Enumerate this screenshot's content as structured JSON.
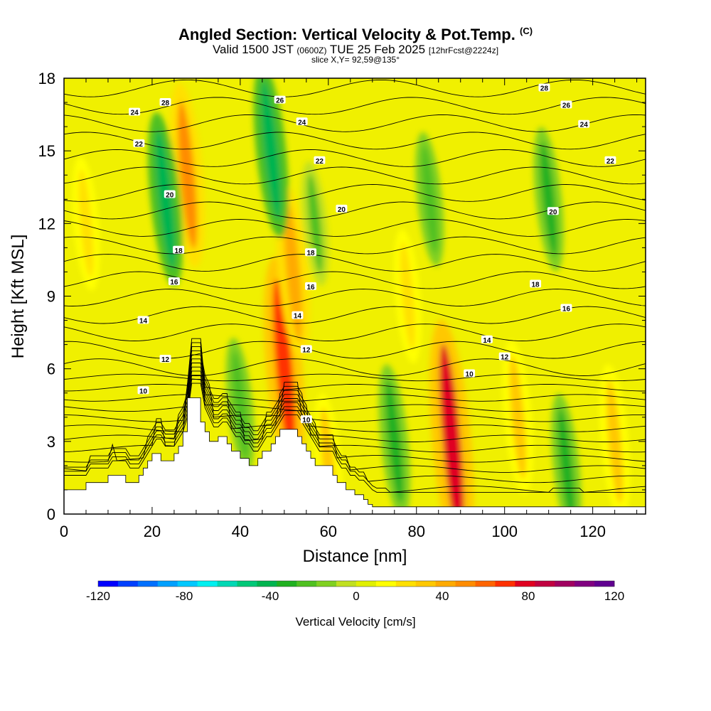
{
  "header": {
    "title_main": "Angled Section: Vertical Velocity & Pot.Temp.",
    "title_unit": "(C)",
    "valid_prefix": "Valid 1500 JST",
    "valid_utc": "(0600Z)",
    "valid_date": "TUE 25 Feb 2025",
    "forecast": "[12hrFcst@2224z]",
    "slice": "slice X,Y= 92,59@135°"
  },
  "chart_data": {
    "type": "heatmap",
    "title": "Angled Section: Vertical Velocity & Pot.Temp. (C)",
    "xlabel": "Distance [nm]",
    "ylabel": "Height [Kft MSL]",
    "xlim": [
      0,
      132
    ],
    "ylim": [
      0,
      18
    ],
    "x_ticks": [
      0,
      20,
      40,
      60,
      80,
      100,
      120
    ],
    "x_tick_labels": [
      "0",
      "20",
      "40",
      "60",
      "80",
      "100",
      "120"
    ],
    "y_ticks": [
      0,
      3,
      6,
      9,
      12,
      15,
      18
    ],
    "y_tick_labels": [
      "0",
      "3",
      "6",
      "9",
      "12",
      "15",
      "18"
    ],
    "colorbar": {
      "label": "Vertical Velocity [cm/s]",
      "min": -120,
      "max": 120,
      "tick_values": [
        -120,
        -80,
        -40,
        0,
        40,
        80,
        120
      ],
      "tick_labels": [
        "-120",
        "-80",
        "-40",
        "0",
        "40",
        "80",
        "120"
      ],
      "colors": [
        "#0000ff",
        "#0040ff",
        "#0070ff",
        "#00a0ff",
        "#00c8ff",
        "#00f0f0",
        "#00d8b4",
        "#00c878",
        "#00b450",
        "#20b020",
        "#50c020",
        "#80d020",
        "#c0e020",
        "#e0f000",
        "#ffff00",
        "#ffe000",
        "#ffc800",
        "#ffaa00",
        "#ff8c00",
        "#ff6400",
        "#ff3000",
        "#e00020",
        "#c00040",
        "#a00060",
        "#800080",
        "#600090"
      ]
    },
    "terrain_profile": {
      "x": [
        0,
        4,
        5,
        9,
        10,
        13,
        14,
        16,
        17,
        18,
        19,
        20,
        21,
        22,
        24,
        25,
        26,
        27,
        28,
        29,
        30,
        31,
        32,
        33,
        35,
        36,
        37,
        38,
        39,
        40,
        42,
        43,
        44,
        45,
        46,
        47,
        48,
        49,
        50,
        52,
        53,
        54,
        55,
        56,
        57,
        59,
        60,
        61,
        62,
        64,
        66,
        68,
        69,
        70,
        72,
        132
      ],
      "y": [
        1.0,
        1.0,
        1.3,
        1.3,
        1.6,
        1.6,
        1.3,
        1.3,
        1.6,
        1.9,
        2.2,
        2.5,
        2.5,
        2.2,
        2.2,
        2.5,
        2.8,
        3.4,
        4.8,
        4.8,
        4.8,
        3.8,
        3.4,
        3.0,
        3.2,
        3.2,
        2.9,
        2.6,
        2.6,
        2.3,
        2.0,
        2.0,
        2.3,
        2.6,
        2.6,
        2.9,
        3.2,
        3.5,
        3.5,
        3.5,
        3.2,
        2.9,
        2.6,
        2.3,
        2.0,
        2.0,
        2.0,
        1.6,
        1.3,
        1.0,
        0.8,
        0.6,
        0.4,
        0.3,
        0.3,
        0.3
      ]
    },
    "updraft_bands_cm_s": [
      {
        "x": 88,
        "y": 3.0,
        "value": 80
      },
      {
        "x": 50,
        "y": 6.0,
        "value": 70
      },
      {
        "x": 28,
        "y": 14.0,
        "value": 50
      },
      {
        "x": 52,
        "y": 10.0,
        "value": 45
      },
      {
        "x": 103,
        "y": 4.0,
        "value": 35
      },
      {
        "x": 125,
        "y": 3.0,
        "value": 35
      },
      {
        "x": 5,
        "y": 12.0,
        "value": 25
      },
      {
        "x": 78,
        "y": 9.0,
        "value": 25
      },
      {
        "x": 60,
        "y": 2.0,
        "value": 30
      }
    ],
    "downdraft_bands_cm_s": [
      {
        "x": 23,
        "y": 13.0,
        "value": -45
      },
      {
        "x": 47,
        "y": 15.0,
        "value": -45
      },
      {
        "x": 75,
        "y": 3.0,
        "value": -35
      },
      {
        "x": 110,
        "y": 13.0,
        "value": -30
      },
      {
        "x": 114,
        "y": 2.0,
        "value": -30
      },
      {
        "x": 83,
        "y": 13.0,
        "value": -25
      },
      {
        "x": 40,
        "y": 4.5,
        "value": -25
      },
      {
        "x": 57,
        "y": 12.0,
        "value": -20
      }
    ],
    "theta_contour_labels": [
      {
        "value": "28",
        "x": 109,
        "y": 17.6
      },
      {
        "value": "26",
        "x": 114,
        "y": 16.9
      },
      {
        "value": "24",
        "x": 118,
        "y": 16.1
      },
      {
        "value": "22",
        "x": 124,
        "y": 14.6
      },
      {
        "value": "20",
        "x": 111,
        "y": 12.5
      },
      {
        "value": "18",
        "x": 107,
        "y": 9.5
      },
      {
        "value": "16",
        "x": 114,
        "y": 8.5
      },
      {
        "value": "14",
        "x": 96,
        "y": 7.2
      },
      {
        "value": "12",
        "x": 100,
        "y": 6.5
      },
      {
        "value": "10",
        "x": 92,
        "y": 5.8
      },
      {
        "value": "28",
        "x": 23,
        "y": 17.0
      },
      {
        "value": "24",
        "x": 16,
        "y": 16.6
      },
      {
        "value": "22",
        "x": 17,
        "y": 15.3
      },
      {
        "value": "20",
        "x": 24,
        "y": 13.2
      },
      {
        "value": "18",
        "x": 26,
        "y": 10.9
      },
      {
        "value": "16",
        "x": 25,
        "y": 9.6
      },
      {
        "value": "14",
        "x": 18,
        "y": 8.0
      },
      {
        "value": "12",
        "x": 23,
        "y": 6.4
      },
      {
        "value": "10",
        "x": 18,
        "y": 5.1
      },
      {
        "value": "26",
        "x": 49,
        "y": 17.1
      },
      {
        "value": "24",
        "x": 54,
        "y": 16.2
      },
      {
        "value": "22",
        "x": 58,
        "y": 14.6
      },
      {
        "value": "20",
        "x": 63,
        "y": 12.6
      },
      {
        "value": "18",
        "x": 56,
        "y": 10.8
      },
      {
        "value": "16",
        "x": 56,
        "y": 9.4
      },
      {
        "value": "14",
        "x": 53,
        "y": 8.2
      },
      {
        "value": "12",
        "x": 55,
        "y": 6.8
      },
      {
        "value": "10",
        "x": 55,
        "y": 3.9
      }
    ]
  }
}
